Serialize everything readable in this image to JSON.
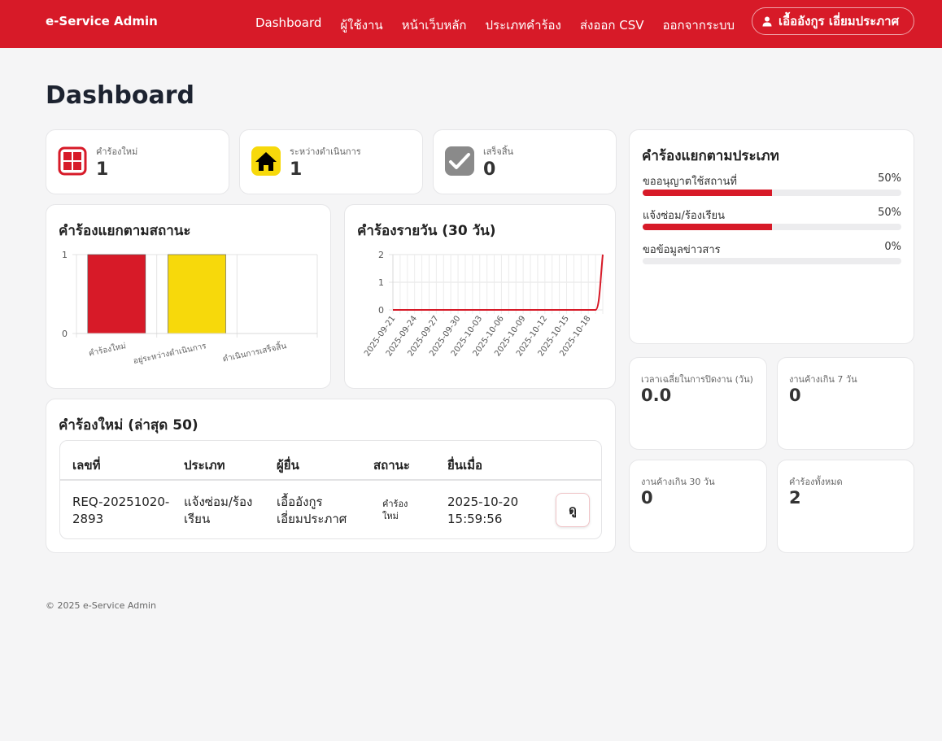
{
  "navbar": {
    "brand": "e-Service Admin",
    "links": [
      "Dashboard",
      "ผู้ใช้งาน",
      "หน้าเว็บหลัก",
      "ประเภทคำร้อง",
      "ส่งออก CSV",
      "ออกจากระบบ"
    ],
    "user_name": "เอื้ออังกูร เอี่ยมประภาศ",
    "accent_color": "#d71a28"
  },
  "page_title": "Dashboard",
  "stats": [
    {
      "label": "คำร้องใหม่",
      "value": "1",
      "icon": "grid-icon",
      "color": "#d71a28"
    },
    {
      "label": "ระหว่างดำเนินการ",
      "value": "1",
      "icon": "home-icon",
      "color": "#f7d90b"
    },
    {
      "label": "เสร็จสิ้น",
      "value": "0",
      "icon": "check-icon",
      "color": "#888888"
    }
  ],
  "status_chart": {
    "title": "คำร้องแยกตามสถานะ"
  },
  "daily_chart": {
    "title": "คำร้องรายวัน (30 วัน)"
  },
  "chart_data": [
    {
      "type": "bar",
      "categories": [
        "คำร้องใหม่",
        "อยู่ระหว่างดำเนินการ",
        "ดำเนินการเสร็จสิ้น"
      ],
      "values": [
        1,
        1,
        0
      ],
      "colors": [
        "#d71a28",
        "#f7d90b",
        "#888888"
      ],
      "ylim": [
        0,
        1
      ],
      "yticks": [
        "0",
        "1"
      ],
      "grid": true
    },
    {
      "type": "line",
      "x": [
        "2025-09-21",
        "2025-09-22",
        "2025-09-23",
        "2025-09-24",
        "2025-09-25",
        "2025-09-26",
        "2025-09-27",
        "2025-09-28",
        "2025-09-29",
        "2025-09-30",
        "2025-10-01",
        "2025-10-02",
        "2025-10-03",
        "2025-10-04",
        "2025-10-05",
        "2025-10-06",
        "2025-10-07",
        "2025-10-08",
        "2025-10-09",
        "2025-10-10",
        "2025-10-11",
        "2025-10-12",
        "2025-10-13",
        "2025-10-14",
        "2025-10-15",
        "2025-10-16",
        "2025-10-17",
        "2025-10-18",
        "2025-10-19",
        "2025-10-20"
      ],
      "values": [
        0,
        0,
        0,
        0,
        0,
        0,
        0,
        0,
        0,
        0,
        0,
        0,
        0,
        0,
        0,
        0,
        0,
        0,
        0,
        0,
        0,
        0,
        0,
        0,
        0,
        0,
        0,
        0,
        0,
        2
      ],
      "xticks": [
        "2025-09-21",
        "2025-09-24",
        "2025-09-27",
        "2025-09-30",
        "2025-10-03",
        "2025-10-06",
        "2025-10-09",
        "2025-10-12",
        "2025-10-15",
        "2025-10-18"
      ],
      "ylim": [
        0,
        2
      ],
      "yticks": [
        "0",
        "1",
        "2"
      ],
      "color": "#d71a28",
      "grid": true
    }
  ],
  "categories_card": {
    "title": "คำร้องแยกตามประเภท",
    "items": [
      {
        "name": "ขออนุญาตใช้สถานที่",
        "pct_label": "50%",
        "pct": 50
      },
      {
        "name": "แจ้งซ่อม/ร้องเรียน",
        "pct_label": "50%",
        "pct": 50
      },
      {
        "name": "ขอข้อมูลข่าวสาร",
        "pct_label": "0%",
        "pct": 0
      }
    ]
  },
  "metrics": [
    {
      "label": "เวลาเฉลี่ยในการปิดงาน (วัน)",
      "value": "0.0"
    },
    {
      "label": "งานค้างเกิน 7 วัน",
      "value": "0"
    },
    {
      "label": "งานค้างเกิน 30 วัน",
      "value": "0"
    },
    {
      "label": "คำร้องทั้งหมด",
      "value": "2"
    }
  ],
  "recent": {
    "title": "คำร้องใหม่ (ล่าสุด 50)",
    "headers": [
      "เลขที่",
      "ประเภท",
      "ผู้ยื่น",
      "สถานะ",
      "ยื่นเมื่อ"
    ],
    "rows": [
      {
        "id_line1": "REQ-20251020-",
        "id_line2": "2893",
        "type_line1": "แจ้งซ่อม/ร้อง",
        "type_line2": "เรียน",
        "submitter_line1": "เอื้ออังกูร",
        "submitter_line2": "เอี่ยมประภาศ",
        "status_line1": "คำร้อง",
        "status_line2": "ใหม่",
        "date_line1": "2025-10-20",
        "date_line2": "15:59:56",
        "action": "ดู"
      }
    ]
  },
  "footer": "© 2025 e-Service Admin"
}
